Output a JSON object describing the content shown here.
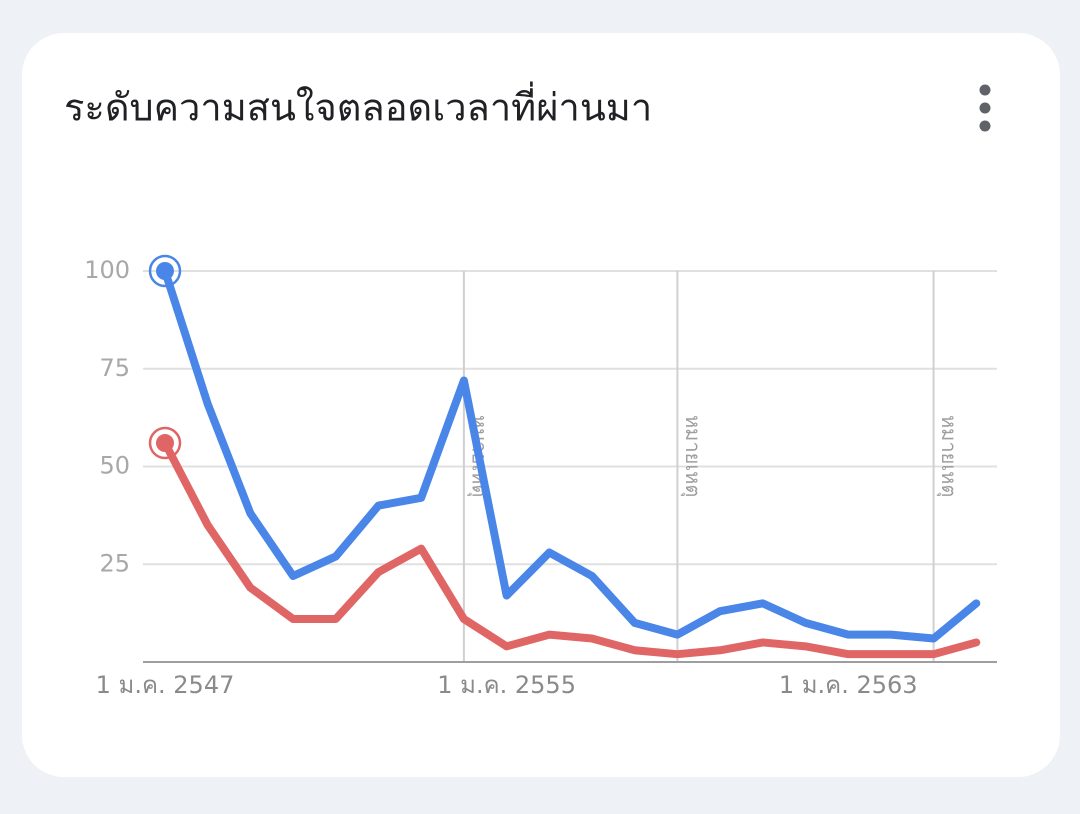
{
  "chart_data": {
    "type": "line",
    "title": "ระดับความสนใจตลอดเวลาที่ผ่านมา",
    "categories": [
      "1 ม.ค. 2547",
      null,
      null,
      null,
      null,
      null,
      null,
      null,
      "1 ม.ค. 2555",
      null,
      null,
      null,
      null,
      null,
      null,
      null,
      "1 ม.ค. 2563",
      null,
      null,
      null
    ],
    "series": [
      {
        "color": "#4a86e8",
        "values": [
          100,
          66,
          38,
          22,
          27,
          40,
          42,
          72,
          17,
          28,
          22,
          10,
          7,
          13,
          15,
          10,
          7,
          7,
          6,
          15
        ]
      },
      {
        "color": "#e06666",
        "values": [
          56,
          35,
          19,
          11,
          11,
          23,
          29,
          11,
          4,
          7,
          6,
          3,
          2,
          3,
          5,
          4,
          2,
          2,
          2,
          5
        ]
      }
    ],
    "ylim": [
      0,
      100
    ],
    "yticks": [
      25,
      50,
      75,
      100
    ],
    "grid": true,
    "annotations": [
      {
        "index": 7,
        "label": "หมายเหตุ"
      },
      {
        "index": 12,
        "label": "หมายเหตุ"
      },
      {
        "index": 18,
        "label": "หมายเหตุ"
      }
    ]
  }
}
